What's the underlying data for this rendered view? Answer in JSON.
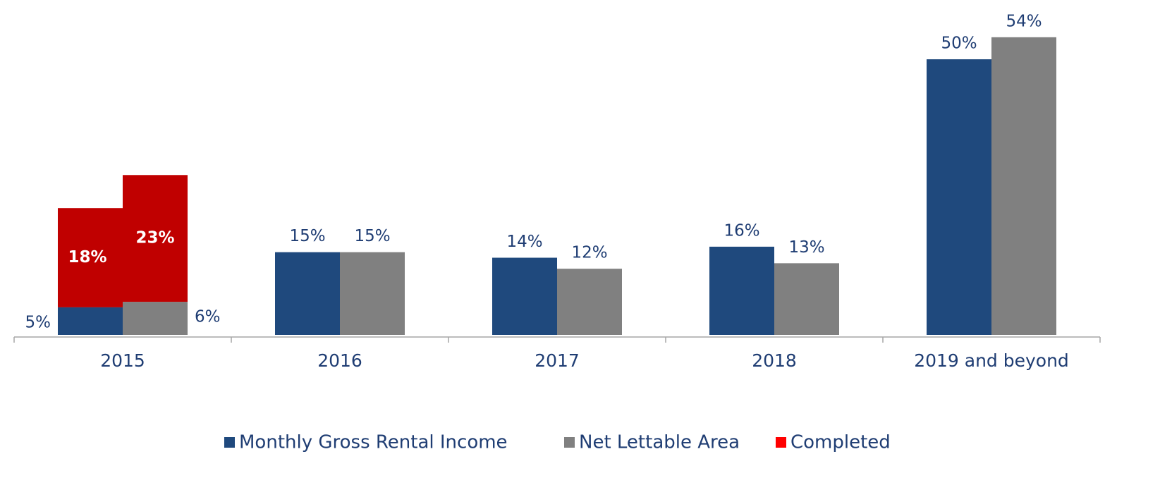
{
  "chart_data": {
    "type": "bar",
    "categories": [
      "2015",
      "2016",
      "2017",
      "2018",
      "2019 and beyond"
    ],
    "series": [
      {
        "name": "Monthly Gross Rental Income",
        "color": "#1f497d",
        "values": [
          5,
          15,
          14,
          16,
          50
        ],
        "value_labels": [
          "5%",
          "15%",
          "14%",
          "16%",
          "50%"
        ]
      },
      {
        "name": "Net Lettable Area",
        "color": "#808080",
        "values": [
          6,
          15,
          12,
          13,
          54
        ],
        "value_labels": [
          "6%",
          "15%",
          "12%",
          "13%",
          "54%"
        ]
      },
      {
        "name": "Completed",
        "color": "#c00000",
        "legend_color": "#ff0000",
        "segments": [
          {
            "stack_on": 0,
            "values": [
              18,
              null,
              null,
              null,
              null
            ],
            "value_labels": [
              "18%",
              null,
              null,
              null,
              null
            ]
          },
          {
            "stack_on": 1,
            "values": [
              23,
              null,
              null,
              null,
              null
            ],
            "value_labels": [
              "23%",
              null,
              null,
              null,
              null
            ]
          }
        ]
      }
    ],
    "ylim": [
      0,
      55
    ],
    "legend": "bottom"
  }
}
